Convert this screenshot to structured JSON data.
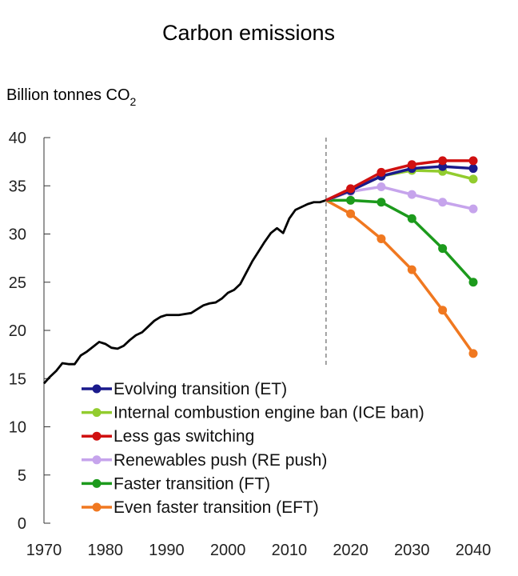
{
  "chart_data": {
    "type": "line",
    "title": "Carbon emissions",
    "ylabel": "Billion tonnes CO",
    "ylabel_subscript": "2",
    "xlim": [
      1970,
      2040
    ],
    "ylim": [
      0,
      40
    ],
    "x_ticks": [
      1970,
      1980,
      1990,
      2000,
      2010,
      2020,
      2030,
      2040
    ],
    "y_ticks": [
      0,
      5,
      10,
      15,
      20,
      25,
      30,
      35,
      40
    ],
    "grid": false,
    "legend_position": "bottom-center",
    "divider_year": 2016,
    "historical": {
      "color": "#000000",
      "points": [
        [
          1970,
          14.5
        ],
        [
          1971,
          15.2
        ],
        [
          1972,
          15.8
        ],
        [
          1973,
          16.6
        ],
        [
          1974,
          16.5
        ],
        [
          1975,
          16.5
        ],
        [
          1976,
          17.4
        ],
        [
          1977,
          17.8
        ],
        [
          1978,
          18.3
        ],
        [
          1979,
          18.8
        ],
        [
          1980,
          18.6
        ],
        [
          1981,
          18.2
        ],
        [
          1982,
          18.1
        ],
        [
          1983,
          18.4
        ],
        [
          1984,
          19.0
        ],
        [
          1985,
          19.5
        ],
        [
          1986,
          19.8
        ],
        [
          1987,
          20.4
        ],
        [
          1988,
          21.0
        ],
        [
          1989,
          21.4
        ],
        [
          1990,
          21.6
        ],
        [
          1991,
          21.6
        ],
        [
          1992,
          21.6
        ],
        [
          1993,
          21.7
        ],
        [
          1994,
          21.8
        ],
        [
          1995,
          22.2
        ],
        [
          1996,
          22.6
        ],
        [
          1997,
          22.8
        ],
        [
          1998,
          22.9
        ],
        [
          1999,
          23.3
        ],
        [
          2000,
          23.9
        ],
        [
          2001,
          24.2
        ],
        [
          2002,
          24.8
        ],
        [
          2003,
          26.0
        ],
        [
          2004,
          27.2
        ],
        [
          2005,
          28.2
        ],
        [
          2006,
          29.2
        ],
        [
          2007,
          30.1
        ],
        [
          2008,
          30.6
        ],
        [
          2009,
          30.1
        ],
        [
          2010,
          31.6
        ],
        [
          2011,
          32.5
        ],
        [
          2012,
          32.8
        ],
        [
          2013,
          33.1
        ],
        [
          2014,
          33.3
        ],
        [
          2015,
          33.3
        ],
        [
          2016,
          33.5
        ]
      ]
    },
    "series": [
      {
        "name": "Evolving transition (ET)",
        "color": "#1a1a8c",
        "points": [
          [
            2016,
            33.5
          ],
          [
            2020,
            34.5
          ],
          [
            2025,
            36.0
          ],
          [
            2030,
            36.8
          ],
          [
            2035,
            37.0
          ],
          [
            2040,
            36.8
          ]
        ]
      },
      {
        "name": "Internal combustion engine ban (ICE ban)",
        "color": "#92cc2e",
        "points": [
          [
            2016,
            33.5
          ],
          [
            2020,
            34.5
          ],
          [
            2025,
            36.0
          ],
          [
            2030,
            36.6
          ],
          [
            2035,
            36.5
          ],
          [
            2040,
            35.7
          ]
        ]
      },
      {
        "name": "Less gas switching",
        "color": "#d01010",
        "points": [
          [
            2016,
            33.5
          ],
          [
            2020,
            34.7
          ],
          [
            2025,
            36.4
          ],
          [
            2030,
            37.2
          ],
          [
            2035,
            37.6
          ],
          [
            2040,
            37.6
          ]
        ]
      },
      {
        "name": "Renewables push (RE push)",
        "color": "#c6a4ec",
        "points": [
          [
            2016,
            33.5
          ],
          [
            2020,
            34.4
          ],
          [
            2025,
            34.9
          ],
          [
            2030,
            34.1
          ],
          [
            2035,
            33.3
          ],
          [
            2040,
            32.6
          ]
        ]
      },
      {
        "name": "Faster transition (FT)",
        "color": "#1c9a1c",
        "points": [
          [
            2016,
            33.5
          ],
          [
            2020,
            33.5
          ],
          [
            2025,
            33.3
          ],
          [
            2030,
            31.6
          ],
          [
            2035,
            28.5
          ],
          [
            2040,
            25.0
          ]
        ]
      },
      {
        "name": "Even faster transition (EFT)",
        "color": "#f07820",
        "points": [
          [
            2016,
            33.5
          ],
          [
            2020,
            32.1
          ],
          [
            2025,
            29.5
          ],
          [
            2030,
            26.3
          ],
          [
            2035,
            22.1
          ],
          [
            2040,
            17.6
          ]
        ]
      }
    ]
  }
}
